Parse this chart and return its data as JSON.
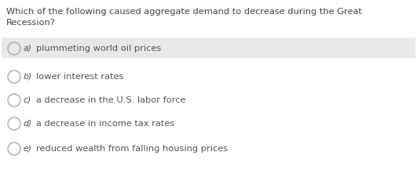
{
  "question_line1": "Which of the following caused aggregate demand to decrease during the Great",
  "question_line2": "Recession?",
  "options": [
    {
      "label": "a)",
      "text": "plummeting world oil prices",
      "highlighted": true
    },
    {
      "label": "b)",
      "text": "lower interest rates",
      "highlighted": false
    },
    {
      "label": "c)",
      "text": "a decrease in the U.S. labor force",
      "highlighted": false
    },
    {
      "label": "d)",
      "text": "a decrease in income tax rates",
      "highlighted": false
    },
    {
      "label": "e)",
      "text": "reduced wealth from falling housing prices",
      "highlighted": false
    }
  ],
  "bg_color": "#ffffff",
  "highlight_color": "#e8e8e8",
  "text_color": "#555555",
  "question_color": "#444444",
  "circle_edge_color": "#aaaaaa",
  "font_size_question": 8.2,
  "font_size_options": 8.2,
  "label_font_size": 7.8,
  "fig_width": 5.31,
  "fig_height": 2.49,
  "dpi": 100
}
